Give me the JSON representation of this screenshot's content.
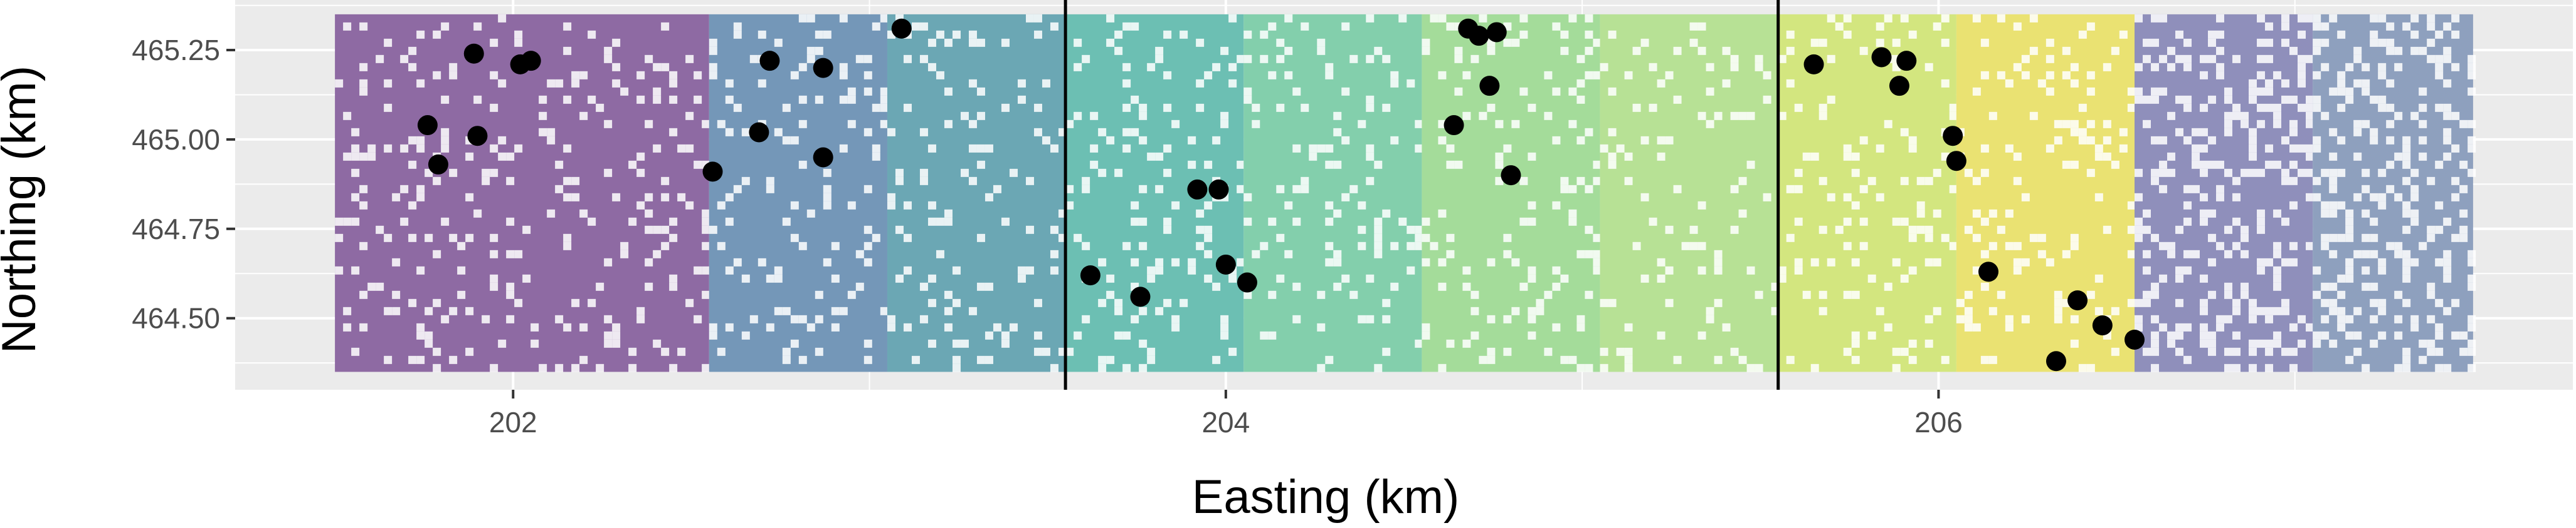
{
  "chart_data": {
    "type": "scatter",
    "title": "",
    "xlabel": "Easting (km)",
    "ylabel": "Northing (km)",
    "xlim": [
      201.22,
      207.78
    ],
    "ylim": [
      464.3,
      465.39
    ],
    "x_ticks": [
      202,
      204,
      206
    ],
    "x_tick_labels": [
      "202",
      "204",
      "206"
    ],
    "y_ticks": [
      464.5,
      464.75,
      465.0,
      465.25
    ],
    "y_tick_labels": [
      "464.50",
      "464.75",
      "465.00",
      "465.25"
    ],
    "grid": true,
    "legend": "none",
    "background_color": "#ebebeb",
    "grid_color": "#ffffff",
    "point_color": "#000000",
    "vertical_lines": [
      203.55,
      205.55
    ],
    "background_raster": {
      "description": "colored land-cover raster in vertical bands, white speckled gaps",
      "x_extent": [
        201.5,
        207.5
      ],
      "y_extent": [
        464.35,
        465.35
      ],
      "bands": [
        {
          "x": [
            201.5,
            202.55
          ],
          "color": "#8e6aa3"
        },
        {
          "x": [
            202.55,
            203.05
          ],
          "color": "#7497b8"
        },
        {
          "x": [
            203.05,
            203.55
          ],
          "color": "#6ba7b4"
        },
        {
          "x": [
            203.55,
            204.05
          ],
          "color": "#6cbfb3"
        },
        {
          "x": [
            204.05,
            204.55
          ],
          "color": "#83cfac"
        },
        {
          "x": [
            204.55,
            205.05
          ],
          "color": "#a4dc9a"
        },
        {
          "x": [
            205.05,
            205.55
          ],
          "color": "#b7e195"
        },
        {
          "x": [
            205.55,
            206.05
          ],
          "color": "#d3e67f"
        },
        {
          "x": [
            206.05,
            206.55
          ],
          "color": "#eae272"
        },
        {
          "x": [
            206.55,
            207.05
          ],
          "color": "#8f8fbb"
        },
        {
          "x": [
            207.05,
            207.5
          ],
          "color": "#8ea0be"
        }
      ]
    },
    "points": [
      {
        "x": 201.89,
        "y": 465.24
      },
      {
        "x": 202.02,
        "y": 465.21
      },
      {
        "x": 202.05,
        "y": 465.22
      },
      {
        "x": 201.76,
        "y": 465.04
      },
      {
        "x": 201.79,
        "y": 464.93
      },
      {
        "x": 201.9,
        "y": 465.01
      },
      {
        "x": 202.72,
        "y": 465.22
      },
      {
        "x": 202.87,
        "y": 465.2
      },
      {
        "x": 203.09,
        "y": 465.31
      },
      {
        "x": 202.69,
        "y": 465.02
      },
      {
        "x": 202.56,
        "y": 464.91
      },
      {
        "x": 202.87,
        "y": 464.95
      },
      {
        "x": 203.62,
        "y": 464.62
      },
      {
        "x": 203.76,
        "y": 464.56
      },
      {
        "x": 203.92,
        "y": 464.86
      },
      {
        "x": 203.98,
        "y": 464.86
      },
      {
        "x": 204.0,
        "y": 464.65
      },
      {
        "x": 204.06,
        "y": 464.6
      },
      {
        "x": 204.64,
        "y": 465.04
      },
      {
        "x": 204.68,
        "y": 465.31
      },
      {
        "x": 204.71,
        "y": 465.29
      },
      {
        "x": 204.76,
        "y": 465.3
      },
      {
        "x": 204.74,
        "y": 465.15
      },
      {
        "x": 204.8,
        "y": 464.9
      },
      {
        "x": 205.65,
        "y": 465.21
      },
      {
        "x": 205.84,
        "y": 465.23
      },
      {
        "x": 205.91,
        "y": 465.22
      },
      {
        "x": 205.89,
        "y": 465.15
      },
      {
        "x": 206.04,
        "y": 465.01
      },
      {
        "x": 206.05,
        "y": 464.94
      },
      {
        "x": 206.14,
        "y": 464.63
      },
      {
        "x": 206.33,
        "y": 464.38
      },
      {
        "x": 206.39,
        "y": 464.55
      },
      {
        "x": 206.46,
        "y": 464.48
      },
      {
        "x": 206.55,
        "y": 464.44
      }
    ]
  }
}
